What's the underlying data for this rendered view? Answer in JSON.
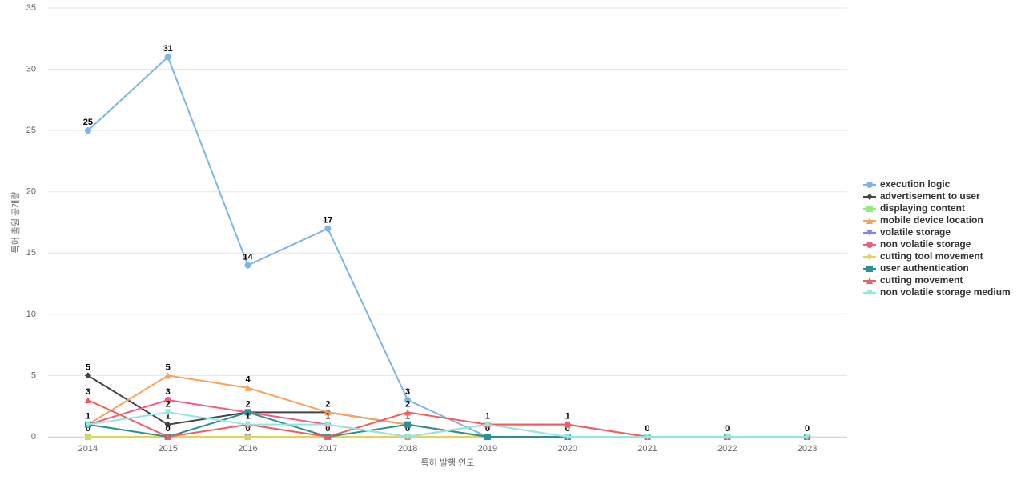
{
  "chart_data": {
    "type": "line",
    "x_label": "특허 발행 연도",
    "y_label": "특허 출원 공개량",
    "categories": [
      "2014",
      "2015",
      "2016",
      "2017",
      "2018",
      "2019",
      "2020",
      "2021",
      "2022",
      "2023"
    ],
    "ylim": [
      0,
      35
    ],
    "yticks": [
      0,
      5,
      10,
      15,
      20,
      25,
      30,
      35
    ],
    "grid": true,
    "series": [
      {
        "name": "execution logic",
        "color": "#7cb5ec",
        "values": [
          25,
          31,
          14,
          17,
          3,
          0,
          0,
          0,
          0,
          0
        ]
      },
      {
        "name": "advertisement to user",
        "color": "#434348",
        "values": [
          5,
          1,
          2,
          2,
          1,
          0,
          0,
          0,
          0,
          0
        ]
      },
      {
        "name": "displaying content",
        "color": "#90ed7d",
        "values": [
          0,
          0,
          0,
          0,
          0,
          0,
          0,
          0,
          0,
          0
        ]
      },
      {
        "name": "mobile device location",
        "color": "#f7a35c",
        "values": [
          1,
          5,
          4,
          2,
          1,
          0,
          0,
          0,
          0,
          0
        ]
      },
      {
        "name": "volatile storage",
        "color": "#8085e9",
        "values": [
          0,
          0,
          0,
          0,
          0,
          0,
          0,
          0,
          0,
          0
        ]
      },
      {
        "name": "non volatile storage",
        "color": "#f15c80",
        "values": [
          1,
          3,
          2,
          1,
          0,
          1,
          1,
          0,
          0,
          0
        ]
      },
      {
        "name": "cutting tool movement",
        "color": "#e4d354",
        "values": [
          0,
          0,
          0,
          0,
          0,
          0,
          0,
          0,
          0,
          0
        ]
      },
      {
        "name": "user authentication",
        "color": "#2b908f",
        "values": [
          1,
          0,
          2,
          0,
          1,
          0,
          0,
          0,
          0,
          0
        ]
      },
      {
        "name": "cutting movement",
        "color": "#f45b5b",
        "values": [
          3,
          0,
          1,
          0,
          2,
          1,
          1,
          0,
          0,
          0
        ]
      },
      {
        "name": "non volatile storage medium",
        "color": "#91e8e1",
        "values": [
          1,
          2,
          1,
          1,
          0,
          1,
          0,
          0,
          0,
          0
        ]
      }
    ]
  }
}
